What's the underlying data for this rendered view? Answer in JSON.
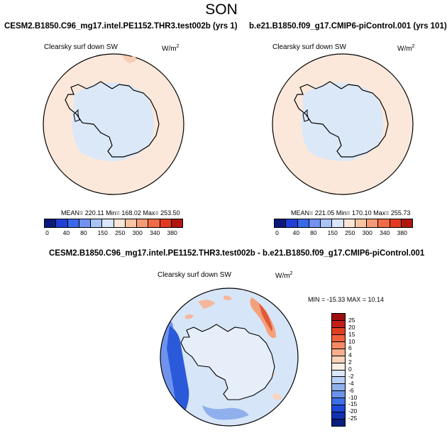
{
  "page_title": "SON",
  "panels": {
    "left": {
      "case_name": "CESM2.B1850.C96_mg17.intel.PE1152.THR3.test002b (yrs 1)",
      "variable": "Clearsky surf down SW",
      "units": "W/m",
      "units_exp": "2",
      "stats": "MEAN= 220.11  Min= 168.02  Max= 253.50"
    },
    "right": {
      "case_name": "b.e21.B1850.f09_g17.CMIP6-piControl.001 (yrs 101)",
      "variable": "Clearsky surf down SW",
      "units": "W/m",
      "units_exp": "2",
      "stats": "MEAN= 221.05  Min= 170.10  Max= 255.73"
    },
    "diff": {
      "case_name": "CESM2.B1850.C96_mg17.intel.PE1152.THR3.test002b - b.e21.B1850.f09_g17.CMIP6-piControl.001",
      "variable": "Clearsky surf down SW",
      "units": "W/m",
      "units_exp": "2",
      "stats": "MIN = -15.33  MAX =  10.14"
    }
  },
  "colorbar_top": {
    "tick_labels": [
      "0",
      "40",
      "80",
      "150",
      "250",
      "300",
      "340",
      "380"
    ],
    "colors": [
      "#0a1a7a",
      "#1f3fd6",
      "#3b68e8",
      "#6f93ef",
      "#a9c3f5",
      "#d9e6fb",
      "#fce6d8",
      "#f8c4a4",
      "#f49b76",
      "#ef6b47",
      "#e23b22",
      "#b0160e"
    ]
  },
  "colorbar_diff": {
    "tick_labels": [
      "25",
      "20",
      "15",
      "10",
      "6",
      "4",
      "2",
      "0",
      "-2",
      "-4",
      "-6",
      "-10",
      "-15",
      "-20",
      "-25"
    ],
    "colors": [
      "#9e0f0f",
      "#c41e1a",
      "#e0401f",
      "#f0623c",
      "#f58a64",
      "#f8ae8c",
      "#fbd2ba",
      "#fdeee4",
      "#dbe7f8",
      "#b9cff3",
      "#8fb0ec",
      "#6a93e9",
      "#3f6fe6",
      "#1f46d6",
      "#1231b0",
      "#0a1e80"
    ]
  },
  "map_colors": {
    "ocean_fill": "#fce8da",
    "antarctic_fill": "#dbe8f8",
    "diff_base": "#d6e5f7"
  }
}
